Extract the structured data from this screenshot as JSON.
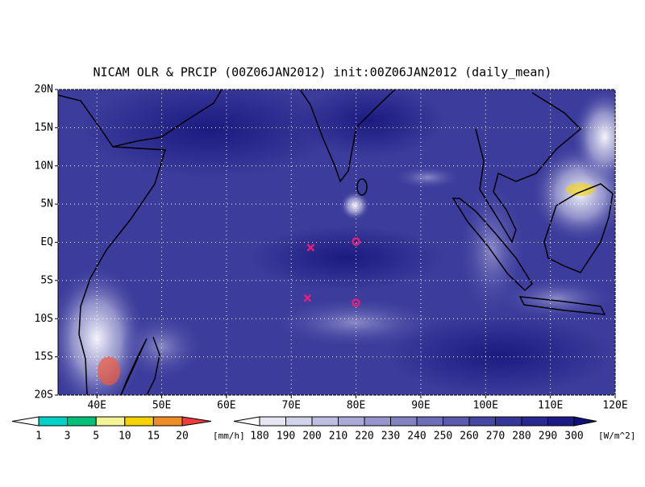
{
  "header": {
    "title": "NICAM OLR & PRCIP (00Z06JAN2012) init:00Z06JAN2012 (daily_mean)"
  },
  "map": {
    "lonlim": [
      34,
      120
    ],
    "latlim": [
      -20,
      20
    ],
    "xticks": [
      {
        "value": 40,
        "label": "40E"
      },
      {
        "value": 50,
        "label": "50E"
      },
      {
        "value": 60,
        "label": "60E"
      },
      {
        "value": 70,
        "label": "70E"
      },
      {
        "value": 80,
        "label": "80E"
      },
      {
        "value": 90,
        "label": "90E"
      },
      {
        "value": 100,
        "label": "100E"
      },
      {
        "value": 110,
        "label": "110E"
      },
      {
        "value": 120,
        "label": "120E"
      }
    ],
    "yticks": [
      {
        "value": 20,
        "label": "20N"
      },
      {
        "value": 15,
        "label": "15N"
      },
      {
        "value": 10,
        "label": "10N"
      },
      {
        "value": 5,
        "label": "5N"
      },
      {
        "value": 0,
        "label": "EQ"
      },
      {
        "value": -5,
        "label": "5S"
      },
      {
        "value": -10,
        "label": "10S"
      },
      {
        "value": -15,
        "label": "15S"
      },
      {
        "value": -20,
        "label": "20S"
      }
    ],
    "markers": [
      {
        "symbol": "x",
        "lon": 73,
        "lat": -0.7,
        "color": "#e0207a"
      },
      {
        "symbol": "o",
        "lon": 80,
        "lat": 0.1,
        "color": "#e0207a"
      },
      {
        "symbol": "x",
        "lon": 72.5,
        "lat": -7.3,
        "color": "#e0207a"
      },
      {
        "symbol": "o",
        "lon": 80,
        "lat": -7.9,
        "color": "#e0207a"
      }
    ]
  },
  "precip_bar": {
    "labels": [
      1,
      3,
      5,
      10,
      15,
      20
    ],
    "unit": "[mm/h]",
    "colors": [
      "#ffffff",
      "#00d2c8",
      "#00c07a",
      "#f4f496",
      "#f5d200",
      "#f08c28",
      "#f03c3c"
    ]
  },
  "olr_bar": {
    "labels": [
      180,
      190,
      200,
      210,
      220,
      230,
      240,
      250,
      260,
      270,
      280,
      290,
      300
    ],
    "unit": "[W/m^2]",
    "colors": [
      "#ffffff",
      "#e6e6f2",
      "#d2d2ea",
      "#bebee0",
      "#aaaad6",
      "#9696cc",
      "#8282c2",
      "#6e6eb8",
      "#5a5aae",
      "#4646a4",
      "#36369a",
      "#282890",
      "#1c1c84",
      "#101078"
    ]
  }
}
